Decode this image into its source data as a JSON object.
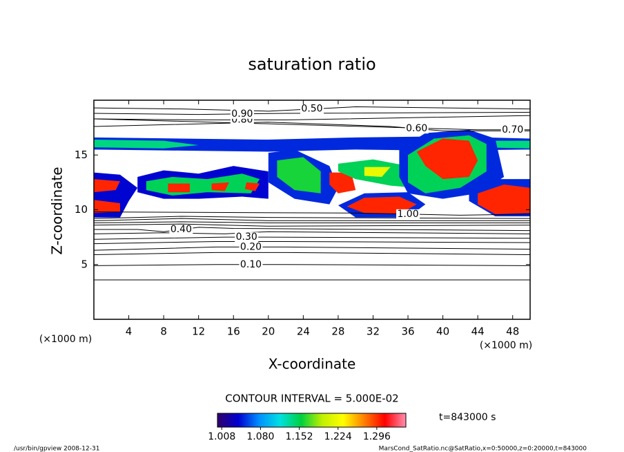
{
  "chart_data": {
    "type": "contour",
    "title": "saturation ratio",
    "xlabel": "X-coordinate",
    "ylabel": "Z-coordinate",
    "xunit": "(×1000 m)",
    "yunit": "(×1000 m)",
    "xlim": [
      0,
      50
    ],
    "ylim": [
      0,
      20
    ],
    "xticks": [
      4,
      8,
      12,
      16,
      20,
      24,
      28,
      32,
      36,
      40,
      44,
      48
    ],
    "yticks": [
      5,
      10,
      15
    ],
    "contour_interval": "CONTOUR INTERVAL = 5.000E-02",
    "time_label": "t=843000 s",
    "footer_left": "/usr/bin/gpview   2008-12-31",
    "footer_right": "MarsCond_SatRatio.nc@SatRatio,x=0:50000,z=0:20000,t=843000",
    "line_color": "#000000",
    "colormap": [
      "#30006a",
      "#0000d0",
      "#0090ff",
      "#00e0e0",
      "#00d040",
      "#c0f000",
      "#ffff00",
      "#ff8000",
      "#ff0000",
      "#ff90b0"
    ],
    "clim": [
      1.0,
      1.35
    ],
    "cticks": [
      1.008,
      {
        "value": 1.08,
        "label": "1.080"
      },
      1.152,
      1.224,
      1.296
    ],
    "regions": [
      {
        "value": 1.05,
        "x": [
          0,
          10,
          20,
          30,
          40,
          50,
          50,
          40,
          30,
          20,
          10,
          0
        ],
        "z": [
          16.6,
          16.5,
          16.4,
          16.6,
          16.7,
          16.5,
          15.5,
          15.4,
          15.5,
          15.3,
          15.4,
          15.5
        ]
      },
      {
        "value": 1.14,
        "x": [
          0,
          8,
          12,
          8,
          0
        ],
        "z": [
          16.4,
          16.3,
          15.9,
          15.6,
          15.7
        ]
      },
      {
        "value": 1.14,
        "x": [
          43,
          50,
          50,
          44
        ],
        "z": [
          16.3,
          16.3,
          15.6,
          15.7
        ]
      },
      {
        "value": 1.04,
        "x": [
          0,
          3,
          5,
          4,
          3,
          0
        ],
        "z": [
          13.4,
          13.2,
          12,
          10.8,
          9.3,
          9.3
        ]
      },
      {
        "value": 1.3,
        "x": [
          0,
          3,
          2.5,
          0
        ],
        "z": [
          12.8,
          12.6,
          11.8,
          11.6
        ]
      },
      {
        "value": 1.3,
        "x": [
          0,
          3,
          3,
          0
        ],
        "z": [
          10.9,
          10.6,
          9.8,
          9.7
        ]
      },
      {
        "value": 1.04,
        "x": [
          5,
          8,
          12,
          16,
          20,
          20,
          17,
          12,
          8,
          5
        ],
        "z": [
          13,
          13.6,
          13.3,
          14,
          13.5,
          11,
          11.2,
          11,
          11,
          11.6
        ]
      },
      {
        "value": 1.15,
        "x": [
          6,
          9,
          13,
          17,
          19,
          18,
          13,
          9,
          6
        ],
        "z": [
          12.6,
          13,
          12.8,
          13.3,
          12.8,
          11.5,
          11.6,
          11.3,
          11.8
        ]
      },
      {
        "value": 1.3,
        "x": [
          8.5,
          11,
          11,
          8.5
        ],
        "z": [
          12.4,
          12.4,
          11.6,
          11.6
        ]
      },
      {
        "value": 1.3,
        "x": [
          13.5,
          15.5,
          15,
          13.5
        ],
        "z": [
          12.4,
          12.5,
          11.7,
          11.8
        ]
      },
      {
        "value": 1.3,
        "x": [
          17.5,
          19,
          18.5,
          17.3
        ],
        "z": [
          12.5,
          12.4,
          11.7,
          11.9
        ]
      },
      {
        "value": 1.05,
        "x": [
          20,
          23,
          27,
          28,
          27,
          23,
          20
        ],
        "z": [
          15.2,
          15.5,
          14,
          12,
          10.5,
          11,
          12.5
        ]
      },
      {
        "value": 1.16,
        "x": [
          21,
          24,
          26,
          26,
          23,
          21
        ],
        "z": [
          14.5,
          14.8,
          13.5,
          11.5,
          11.8,
          13
        ]
      },
      {
        "value": 1.3,
        "x": [
          27,
          29.5,
          30,
          28,
          27
        ],
        "z": [
          13.4,
          13.4,
          11.8,
          11.5,
          12.3
        ]
      },
      {
        "value": 1.15,
        "x": [
          28,
          32,
          36,
          37,
          34,
          30,
          28
        ],
        "z": [
          14.2,
          14.6,
          14,
          12,
          12.2,
          12.8,
          13.5
        ]
      },
      {
        "value": 1.22,
        "x": [
          31,
          34,
          33,
          31
        ],
        "z": [
          13.9,
          13.9,
          13,
          13.1
        ]
      },
      {
        "value": 1.05,
        "x": [
          35,
          38,
          43,
          46,
          47,
          44,
          40,
          36,
          35
        ],
        "z": [
          15.5,
          17,
          17.3,
          16.5,
          13,
          11.5,
          11,
          11.5,
          13
        ]
      },
      {
        "value": 1.15,
        "x": [
          36,
          39,
          43,
          45,
          45,
          42,
          38,
          36
        ],
        "z": [
          15,
          16.5,
          16.8,
          16,
          13.5,
          12,
          11.5,
          12.5
        ]
      },
      {
        "value": 1.3,
        "x": [
          37,
          40,
          43,
          44,
          43,
          40,
          38
        ],
        "z": [
          15.3,
          16.5,
          16.3,
          14.5,
          13,
          12.8,
          14
        ]
      },
      {
        "value": 1.05,
        "x": [
          28,
          31,
          36,
          38,
          36,
          30
        ],
        "z": [
          10.4,
          11.5,
          11.6,
          10.5,
          9.3,
          9.3
        ]
      },
      {
        "value": 1.3,
        "x": [
          29,
          31,
          35,
          37,
          35,
          31
        ],
        "z": [
          10.3,
          11.1,
          11.2,
          10.5,
          9.6,
          9.7
        ]
      },
      {
        "value": 1.05,
        "x": [
          43,
          46,
          50,
          50,
          46,
          43
        ],
        "z": [
          12,
          12.8,
          12.8,
          9.4,
          9.4,
          10.8
        ]
      },
      {
        "value": 1.3,
        "x": [
          44,
          47,
          50,
          50,
          46,
          44
        ],
        "z": [
          11.5,
          12.3,
          12,
          9.7,
          9.6,
          10.5
        ]
      }
    ],
    "contours": [
      {
        "level": 0.05,
        "x": [
          0,
          50
        ],
        "z": [
          3.6,
          3.6
        ]
      },
      {
        "level": 0.1,
        "label": "0.10",
        "x": [
          0,
          14,
          22,
          50
        ],
        "z": [
          4.9,
          5,
          5,
          4.9
        ]
      },
      {
        "level": 0.15,
        "x": [
          0,
          14,
          22,
          50
        ],
        "z": [
          5.9,
          6.1,
          6.1,
          5.9
        ]
      },
      {
        "level": 0.2,
        "label": "0.20",
        "x": [
          0,
          14,
          22,
          50
        ],
        "z": [
          6.3,
          6.6,
          6.6,
          6.4
        ]
      },
      {
        "level": 0.25,
        "x": [
          0,
          14,
          22,
          50
        ],
        "z": [
          6.9,
          7.1,
          7.1,
          7.0
        ]
      },
      {
        "level": 0.3,
        "label": "0.30",
        "x": [
          0,
          15,
          20,
          50
        ],
        "z": [
          7.3,
          7.5,
          7.5,
          7.4
        ]
      },
      {
        "level": 0.35,
        "x": [
          0,
          8,
          15,
          20,
          50
        ],
        "z": [
          7.8,
          7.9,
          7.8,
          8.0,
          7.8
        ]
      },
      {
        "level": 0.4,
        "label": "0.40",
        "x": [
          0,
          5,
          8,
          12,
          16,
          50
        ],
        "z": [
          8.2,
          8.2,
          8.0,
          8.4,
          8.3,
          8.1
        ]
      },
      {
        "level": 0.5,
        "x": [
          0,
          10,
          20,
          50
        ],
        "z": [
          8.6,
          8.7,
          8.5,
          8.6
        ]
      },
      {
        "level": 0.6,
        "x": [
          0,
          10,
          20,
          50
        ],
        "z": [
          8.8,
          8.9,
          8.8,
          8.8
        ]
      },
      {
        "level": 0.7,
        "x": [
          0,
          10,
          20,
          50
        ],
        "z": [
          9.0,
          9.2,
          9.0,
          9.0
        ]
      },
      {
        "level": 0.8,
        "x": [
          0,
          10,
          20,
          50
        ],
        "z": [
          9.2,
          9.4,
          9.3,
          9.2
        ]
      },
      {
        "level": 1.0,
        "label": "1.00",
        "x": [
          0,
          30,
          42,
          50
        ],
        "z": [
          9.8,
          9.7,
          9.5,
          9.6
        ]
      },
      {
        "level": 0.5,
        "label": "0.50",
        "x": [
          0,
          10,
          20,
          30,
          50
        ],
        "z": [
          19.3,
          19.2,
          19.0,
          19.4,
          19.2
        ]
      },
      {
        "level": 0.6,
        "label": "0.60",
        "x": [
          0,
          20,
          34,
          40,
          50
        ],
        "z": [
          17.6,
          18,
          17.6,
          17.2,
          17.2
        ]
      },
      {
        "level": 0.7,
        "label": "0.70",
        "x": [
          0,
          44,
          47,
          49,
          50
        ],
        "z": [
          18.3,
          17.3,
          17.3,
          17.3,
          17.3
        ]
      },
      {
        "level": 0.8,
        "label": "0.80",
        "x": [
          0,
          12,
          22,
          50
        ],
        "z": [
          18.3,
          18.2,
          18.2,
          18.6
        ]
      },
      {
        "level": 0.9,
        "label": "0.90",
        "x": [
          0,
          12,
          22,
          50
        ],
        "z": [
          18.8,
          18.7,
          18.8,
          18.9
        ]
      }
    ]
  }
}
